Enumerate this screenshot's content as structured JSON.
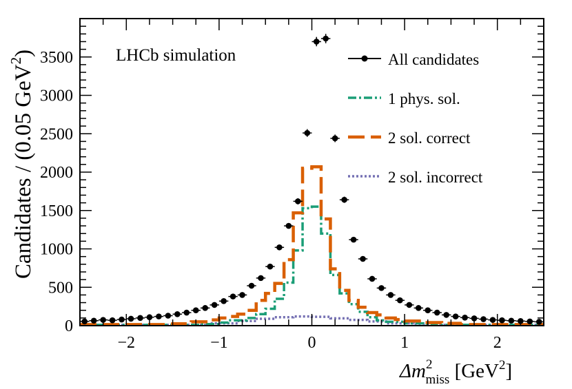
{
  "chart_data": {
    "type": "histogram",
    "title": "LHCb simulation",
    "xlabel_parts": {
      "prefix": "Δm",
      "sup": "2",
      "sub": "miss",
      "unit": " [GeV",
      "unit_sup": "2",
      "unit_close": "]"
    },
    "ylabel_parts": {
      "main": "Candidates / (0.05 GeV",
      "sup": "2",
      "close": ")"
    },
    "xlim": [
      -2.5,
      2.5
    ],
    "ylim": [
      0,
      4000
    ],
    "x_ticks": [
      -2,
      -1,
      0,
      1,
      2
    ],
    "x_tick_labels": [
      "−2",
      "−1",
      "0",
      "1",
      "2"
    ],
    "y_ticks": [
      0,
      500,
      1000,
      1500,
      2000,
      2500,
      3000,
      3500
    ],
    "y_tick_labels": [
      "0",
      "500",
      "1000",
      "1500",
      "2000",
      "2500",
      "3000",
      "3500"
    ],
    "legend": [
      {
        "key": "all",
        "label": "All candidates"
      },
      {
        "key": "phys1",
        "label": "1 phys. sol."
      },
      {
        "key": "sol2c",
        "label": "2 sol. correct"
      },
      {
        "key": "sol2i",
        "label": "2 sol. incorrect"
      }
    ],
    "colors": {
      "all": "#000000",
      "phys1": "#1b9e77",
      "sol2c": "#d95f02",
      "sol2i": "#7570b3"
    },
    "data_points": {
      "x": [
        -2.45,
        -2.35,
        -2.25,
        -2.15,
        -2.05,
        -1.95,
        -1.85,
        -1.75,
        -1.65,
        -1.55,
        -1.45,
        -1.35,
        -1.25,
        -1.15,
        -1.05,
        -0.95,
        -0.85,
        -0.75,
        -0.65,
        -0.55,
        -0.45,
        -0.35,
        -0.25,
        -0.15,
        -0.05,
        0.05,
        0.15,
        0.25,
        0.35,
        0.45,
        0.55,
        0.65,
        0.75,
        0.85,
        0.95,
        1.05,
        1.15,
        1.25,
        1.35,
        1.45,
        1.55,
        1.65,
        1.75,
        1.85,
        1.95,
        2.05,
        2.15,
        2.25,
        2.35,
        2.45
      ],
      "y": [
        55,
        65,
        75,
        70,
        80,
        90,
        100,
        110,
        120,
        130,
        150,
        170,
        200,
        230,
        270,
        320,
        380,
        400,
        520,
        620,
        770,
        1020,
        1300,
        1620,
        2510,
        3700,
        3740,
        2440,
        1640,
        1120,
        870,
        610,
        490,
        400,
        330,
        270,
        230,
        200,
        170,
        140,
        120,
        105,
        95,
        85,
        75,
        70,
        65,
        60,
        55,
        50
      ]
    },
    "bins_phys1": {
      "edges": [
        -2.5,
        -1.2,
        -1.0,
        -0.9,
        -0.7,
        -0.6,
        -0.5,
        -0.4,
        -0.3,
        -0.2,
        -0.1,
        0.0,
        0.1,
        0.2,
        0.3,
        0.4,
        0.5,
        0.6,
        0.7,
        0.8,
        1.0,
        1.2,
        1.3,
        2.5
      ],
      "values": [
        10,
        20,
        40,
        70,
        100,
        150,
        220,
        350,
        560,
        980,
        1530,
        1550,
        1200,
        660,
        420,
        280,
        180,
        110,
        70,
        50,
        30,
        20,
        10
      ]
    },
    "bins_sol2c": {
      "edges": [
        -2.5,
        -1.5,
        -1.3,
        -1.1,
        -1.0,
        -0.9,
        -0.8,
        -0.7,
        -0.6,
        -0.5,
        -0.4,
        -0.3,
        -0.2,
        -0.1,
        0.0,
        0.1,
        0.2,
        0.3,
        0.4,
        0.5,
        0.6,
        0.7,
        0.8,
        0.9,
        1.0,
        1.2,
        1.4,
        1.6,
        2.5
      ],
      "values": [
        15,
        25,
        50,
        75,
        100,
        120,
        150,
        200,
        330,
        420,
        550,
        860,
        1470,
        2050,
        2070,
        1390,
        740,
        460,
        330,
        240,
        170,
        140,
        100,
        80,
        60,
        40,
        30,
        15
      ]
    },
    "bins_sol2i": {
      "edges": [
        -2.5,
        -1.1,
        -0.8,
        -0.6,
        -0.4,
        -0.2,
        0.0,
        0.2,
        0.4,
        0.6,
        0.8,
        1.1,
        2.5
      ],
      "values": [
        10,
        30,
        60,
        90,
        110,
        120,
        115,
        95,
        75,
        55,
        30,
        10
      ]
    }
  }
}
